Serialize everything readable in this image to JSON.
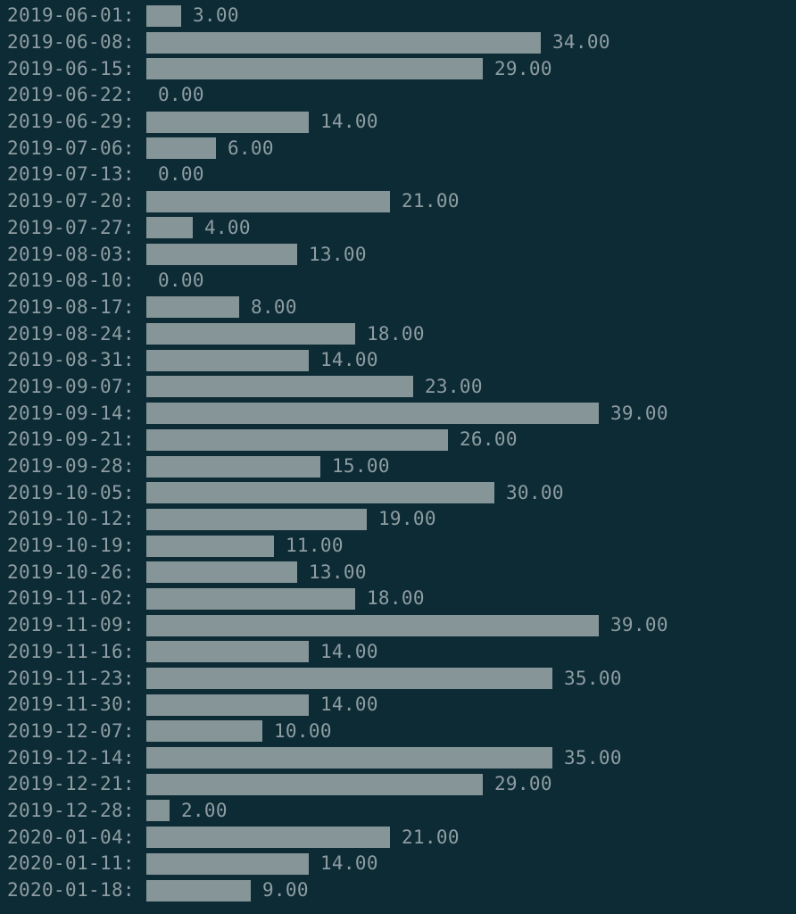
{
  "window": {
    "background_color": "#0d2b35"
  },
  "chart_data": {
    "type": "bar",
    "orientation": "horizontal",
    "title": "",
    "xlabel": "",
    "ylabel": "",
    "xlim": [
      0,
      39
    ],
    "grid": false,
    "legend": false,
    "label_suffix": ":",
    "background_color": "#0d2b35",
    "bar_color": "#869598",
    "text_color": "#8e9da2",
    "categories": [
      "2019-06-01",
      "2019-06-08",
      "2019-06-15",
      "2019-06-22",
      "2019-06-29",
      "2019-07-06",
      "2019-07-13",
      "2019-07-20",
      "2019-07-27",
      "2019-08-03",
      "2019-08-10",
      "2019-08-17",
      "2019-08-24",
      "2019-08-31",
      "2019-09-07",
      "2019-09-14",
      "2019-09-21",
      "2019-09-28",
      "2019-10-05",
      "2019-10-12",
      "2019-10-19",
      "2019-10-26",
      "2019-11-02",
      "2019-11-09",
      "2019-11-16",
      "2019-11-23",
      "2019-11-30",
      "2019-12-07",
      "2019-12-14",
      "2019-12-21",
      "2019-12-28",
      "2020-01-04",
      "2020-01-11",
      "2020-01-18"
    ],
    "values": [
      3,
      34,
      29,
      0,
      14,
      6,
      0,
      21,
      4,
      13,
      0,
      8,
      18,
      14,
      23,
      39,
      26,
      15,
      30,
      19,
      11,
      13,
      18,
      39,
      14,
      35,
      14,
      10,
      35,
      29,
      2,
      21,
      14,
      9
    ],
    "value_labels": [
      "3.00",
      "34.00",
      "29.00",
      "0.00",
      "14.00",
      "6.00",
      "0.00",
      "21.00",
      "4.00",
      "13.00",
      "0.00",
      "8.00",
      "18.00",
      "14.00",
      "23.00",
      "39.00",
      "26.00",
      "15.00",
      "30.00",
      "19.00",
      "11.00",
      "13.00",
      "18.00",
      "39.00",
      "14.00",
      "35.00",
      "14.00",
      "10.00",
      "35.00",
      "29.00",
      "2.00",
      "21.00",
      "14.00",
      "9.00"
    ]
  }
}
